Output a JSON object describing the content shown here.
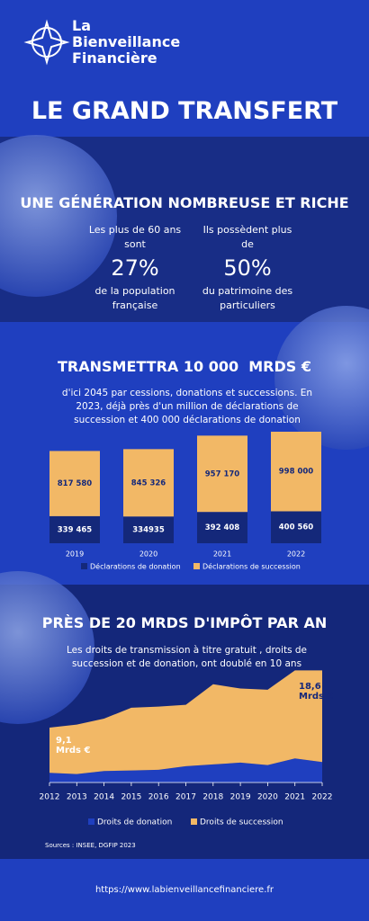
{
  "header": {
    "logo": [
      "La",
      "Bienveillance",
      "Financière"
    ]
  },
  "title": "LE GRAND TRANSFERT",
  "section1": {
    "heading": "UNE GÉNÉRATION NOMBREUSE ET RICHE",
    "stats": [
      {
        "before": "Les plus de 60 ans sont",
        "figure": "27%",
        "after": "de la population française"
      },
      {
        "before": "Ils possèdent plus de",
        "figure": "50%",
        "after": "du patrimoine des particuliers"
      }
    ]
  },
  "chart_data": [
    {
      "type": "stacked-bar",
      "title": "TRANSMETTRA 10 000  MRDS €",
      "subtitle": "d'ici 2045 par cessions, donations et successions. En 2023, déjà près d'un million de déclarations de succession et 400 000 déclarations de donation",
      "categories": [
        "2019",
        "2020",
        "2021",
        "2022"
      ],
      "series": [
        {
          "name": "Déclarations de donation",
          "color": "#14287a",
          "values": [
            339465,
            334935,
            392408,
            400560
          ],
          "value_labels": [
            "339 465",
            "334935",
            "392 408",
            "400 560"
          ]
        },
        {
          "name": "Déclarations de succession",
          "color": "#f2b866",
          "values": [
            817580,
            845326,
            957170,
            998000
          ],
          "value_labels": [
            "817 580",
            "845 326",
            "957 170",
            "998 000"
          ]
        }
      ]
    },
    {
      "type": "stacked-area",
      "title": "PRÈS DE 20 MRDS D'IMPÔT PAR AN",
      "subtitle": "Les droits de transmission à titre gratuit , droits de succession et de donation, ont doublé en 10 ans",
      "x": [
        2012,
        2013,
        2014,
        2015,
        2016,
        2017,
        2018,
        2019,
        2020,
        2021,
        2022
      ],
      "xlim": [
        2012,
        2022
      ],
      "xticks": [
        2012,
        2013,
        2014,
        2015,
        2016,
        2017,
        2018,
        2019,
        2020,
        2021,
        2022
      ],
      "series": [
        {
          "name": "Droits de donation",
          "color": "#1f3fbf",
          "values": [
            1.6,
            1.4,
            1.9,
            2.0,
            2.1,
            2.7,
            3.0,
            3.3,
            2.9,
            4.0,
            3.4
          ]
        },
        {
          "name": "Droits de succession",
          "color": "#f2b866",
          "values": [
            7.5,
            8.2,
            8.7,
            10.4,
            10.5,
            10.2,
            13.3,
            12.3,
            12.5,
            14.6,
            15.2
          ]
        }
      ],
      "annotations": [
        "9,1 Mrds €",
        "18,6 Mrds €"
      ]
    }
  ],
  "sources": "Sources : INSEE, DGFIP 2023",
  "url": "https://www.labienveillancefinanciere.fr"
}
